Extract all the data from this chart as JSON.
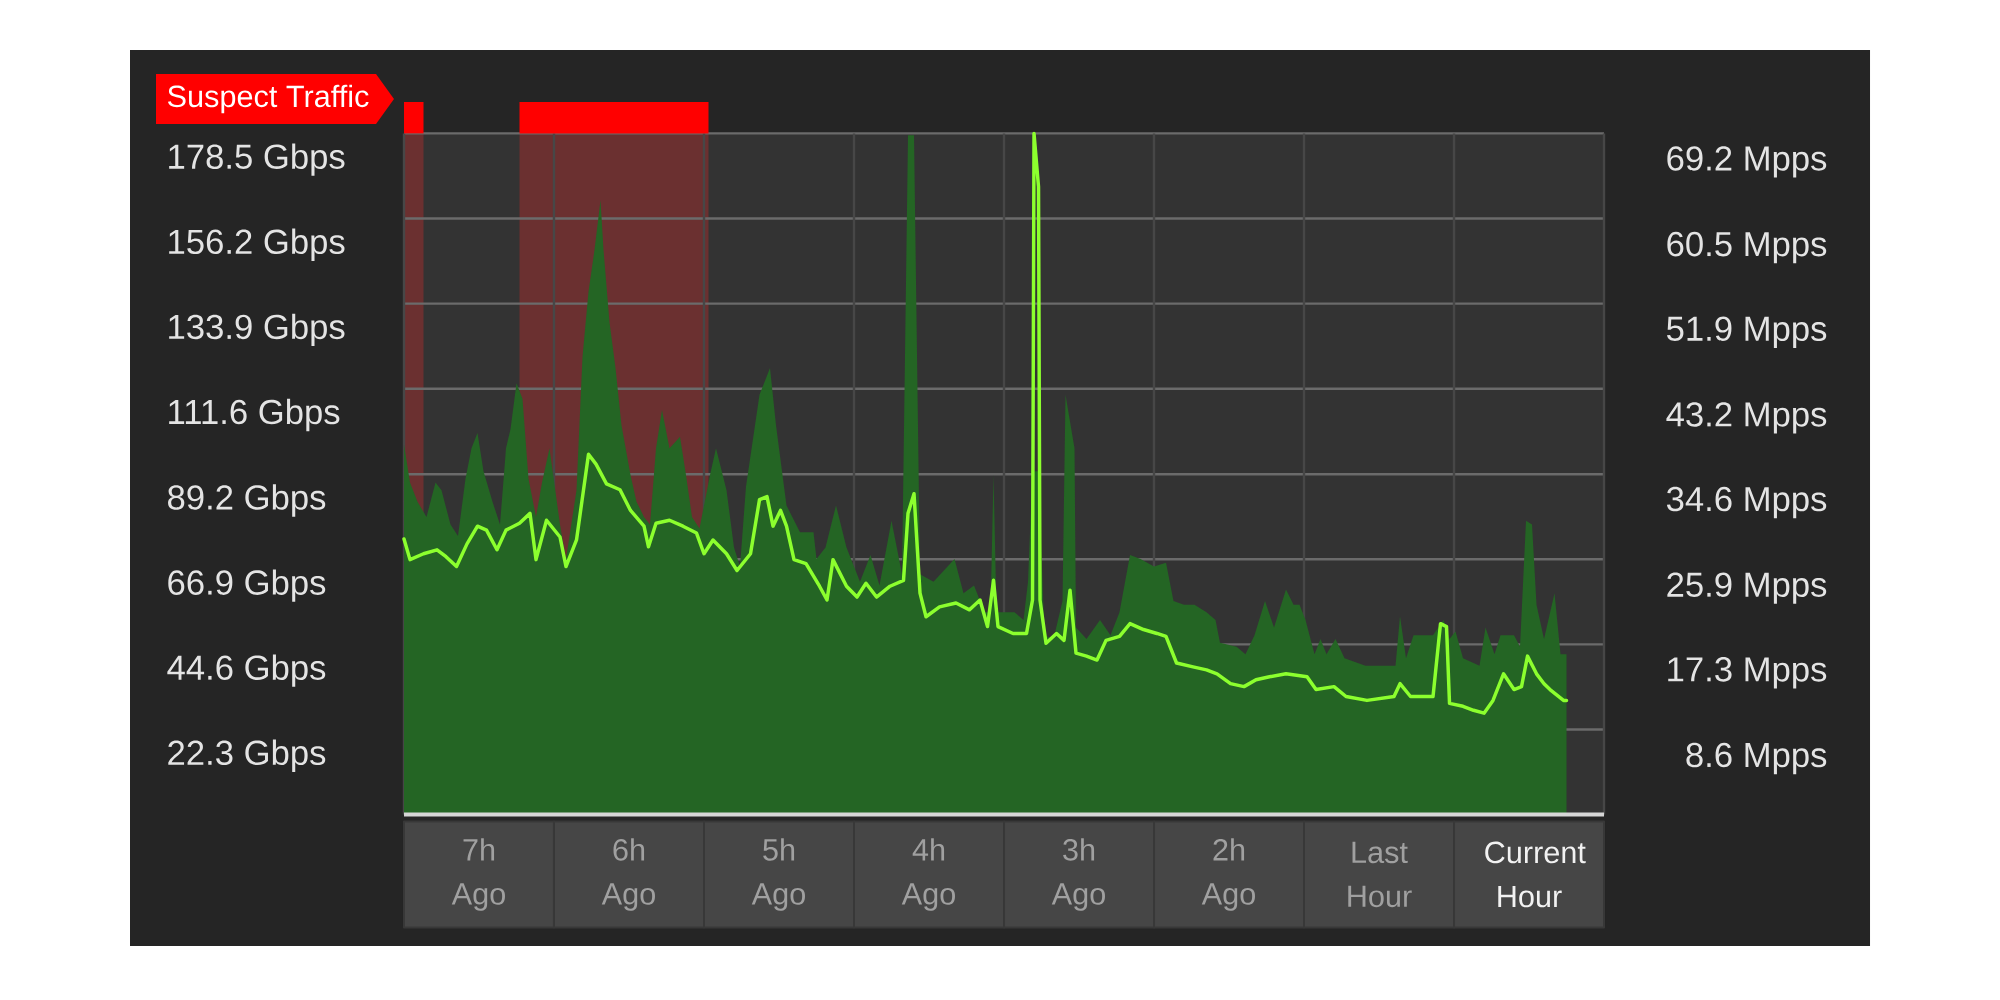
{
  "chart_data": {
    "type": "area",
    "xlim": [
      -7.5,
      0.5
    ],
    "xticks": [
      {
        "value": -7.5,
        "label": null
      },
      {
        "value": -7,
        "label": "7h Ago"
      },
      {
        "value": -6.5,
        "label": null
      },
      {
        "value": -6,
        "label": "6h Ago"
      },
      {
        "value": -5.5,
        "label": null
      },
      {
        "value": -5,
        "label": "5h Ago"
      },
      {
        "value": -4.5,
        "label": null
      },
      {
        "value": -4,
        "label": "4h Ago"
      },
      {
        "value": -3.5,
        "label": null
      },
      {
        "value": -3,
        "label": "3h Ago"
      },
      {
        "value": -2.5,
        "label": null
      },
      {
        "value": -2,
        "label": "2h Ago"
      },
      {
        "value": -1.5,
        "label": null
      },
      {
        "value": -1,
        "label": "Last Hour"
      },
      {
        "value": -0.5,
        "label": null
      },
      {
        "value": 0,
        "label": "Current Hour"
      },
      {
        "value": 0.5,
        "label": null
      }
    ],
    "ylim": [
      0,
      178.5
    ],
    "yticks": [
      {
        "value": 22.3,
        "label": "22.3 Gbps"
      },
      {
        "value": 44.6,
        "label": "44.6 Gbps"
      },
      {
        "value": 66.9,
        "label": "66.9 Gbps"
      },
      {
        "value": 89.2,
        "label": "89.2 Gbps"
      },
      {
        "value": 111.6,
        "label": "111.6 Gbps"
      },
      {
        "value": 133.9,
        "label": "133.9 Gbps"
      },
      {
        "value": 156.2,
        "label": "156.2 Gbps"
      },
      {
        "value": 178.5,
        "label": "178.5 Gbps"
      }
    ],
    "y2lim": [
      0,
      69.2
    ],
    "y2ticks": [
      {
        "value": 8.6,
        "label": "8.6 Mpps"
      },
      {
        "value": 17.3,
        "label": "17.3 Mpps"
      },
      {
        "value": 25.9,
        "label": "25.9 Mpps"
      },
      {
        "value": 34.6,
        "label": "34.6 Mpps"
      },
      {
        "value": 43.2,
        "label": "43.2 Mpps"
      },
      {
        "value": 51.9,
        "label": "51.9 Mpps"
      },
      {
        "value": 60.5,
        "label": "60.5 Mpps"
      },
      {
        "value": 69.2,
        "label": "69.2 Mpps"
      }
    ],
    "grid": true,
    "bands": [
      {
        "axis": "x",
        "from": -7.5,
        "to": -7.37,
        "label": "Suspect Traffic",
        "color": "#6b3030"
      },
      {
        "axis": "x",
        "from": -6.73,
        "to": -5.47,
        "color": "#6b3030"
      }
    ],
    "series": [
      {
        "color": "#246524",
        "x": [
          -7.5,
          -7.46,
          -7.41,
          -7.35,
          -7.29,
          -7.25,
          -7.19,
          -7.14,
          -7.09,
          -7.05,
          -7.01,
          -6.97,
          -6.91,
          -6.86,
          -6.82,
          -6.79,
          -6.75,
          -6.71,
          -6.67,
          -6.62,
          -6.58,
          -6.53,
          -6.46,
          -6.42,
          -6.35,
          -6.31,
          -6.27,
          -6.23,
          -6.19,
          -6.17,
          -6.13,
          -6.09,
          -6.05,
          -5.99,
          -5.95,
          -5.9,
          -5.86,
          -5.82,
          -5.78,
          -5.73,
          -5.66,
          -5.62,
          -5.58,
          -5.53,
          -5.46,
          -5.42,
          -5.35,
          -5.3,
          -5.26,
          -5.22,
          -5.19,
          -5.13,
          -5.06,
          -5.02,
          -4.95,
          -4.86,
          -4.77,
          -4.75,
          -4.69,
          -4.62,
          -4.55,
          -4.46,
          -4.39,
          -4.33,
          -4.25,
          -4.18,
          -4.14,
          -4.1,
          -4.06,
          -3.97,
          -3.83,
          -3.77,
          -3.7,
          -3.63,
          -3.59,
          -3.57,
          -3.55,
          -3.43,
          -3.37,
          -3.34,
          -3.31,
          -3.27,
          -3.23,
          -3.17,
          -3.11,
          -3.09,
          -3.03,
          -3.02,
          -2.95,
          -2.86,
          -2.79,
          -2.73,
          -2.66,
          -2.59,
          -2.5,
          -2.42,
          -2.37,
          -2.3,
          -2.23,
          -2.15,
          -2.09,
          -2.06,
          -1.95,
          -1.89,
          -1.83,
          -1.76,
          -1.7,
          -1.62,
          -1.57,
          -1.53,
          -1.49,
          -1.43,
          -1.39,
          -1.35,
          -1.29,
          -1.23,
          -1.09,
          -0.89,
          -0.86,
          -0.82,
          -0.77,
          -0.64,
          -0.57,
          -0.53,
          -0.49,
          -0.44,
          -0.33,
          -0.29,
          -0.23,
          -0.19,
          -0.1,
          -0.06,
          -0.02,
          0.02,
          0.05,
          0.1,
          0.17,
          0.21,
          0.25
        ],
        "values": [
          97,
          87,
          82,
          78,
          87,
          85,
          76,
          73,
          88,
          96,
          100,
          90,
          82,
          76,
          96,
          101,
          113,
          109,
          88,
          78,
          87,
          96,
          76,
          67,
          85,
          120,
          137,
          148,
          161,
          148,
          129,
          117,
          102,
          89,
          82,
          78,
          76,
          96,
          106,
          96,
          99,
          89,
          78,
          75,
          89,
          96,
          85,
          70,
          65,
          86,
          94,
          110,
          117,
          102,
          81,
          74,
          74,
          67,
          70,
          81,
          70,
          61,
          68,
          60,
          77,
          63,
          178,
          178,
          63,
          61,
          67,
          58,
          60,
          53,
          53,
          89,
          53,
          53,
          51,
          61,
          90,
          90,
          47,
          46,
          56,
          110,
          96,
          49,
          46,
          51,
          47,
          53,
          68,
          67,
          65,
          66,
          56,
          55,
          55,
          53,
          51,
          45,
          44,
          42,
          47,
          56,
          49,
          59,
          55,
          55,
          51,
          42,
          46,
          42,
          46,
          41,
          39,
          39,
          52,
          41,
          47,
          47,
          51,
          46,
          48,
          41,
          39,
          49,
          42,
          47,
          47,
          44,
          77,
          76,
          55,
          46,
          58,
          42,
          42
        ]
      },
      {
        "type": "line",
        "axis": "y2",
        "color": "#8cff2e",
        "x": [
          -7.5,
          -7.46,
          -7.37,
          -7.28,
          -7.22,
          -7.15,
          -7.08,
          -7.01,
          -6.95,
          -6.88,
          -6.82,
          -6.73,
          -6.66,
          -6.62,
          -6.55,
          -6.46,
          -6.42,
          -6.35,
          -6.27,
          -6.22,
          -6.15,
          -6.06,
          -5.99,
          -5.9,
          -5.87,
          -5.82,
          -5.73,
          -5.64,
          -5.55,
          -5.5,
          -5.44,
          -5.35,
          -5.28,
          -5.19,
          -5.13,
          -5.08,
          -5.04,
          -4.99,
          -4.95,
          -4.9,
          -4.82,
          -4.73,
          -4.68,
          -4.64,
          -4.55,
          -4.48,
          -4.42,
          -4.35,
          -4.26,
          -4.17,
          -4.14,
          -4.1,
          -4.06,
          -4.02,
          -3.93,
          -3.82,
          -3.73,
          -3.66,
          -3.61,
          -3.57,
          -3.54,
          -3.44,
          -3.35,
          -3.31,
          -3.3,
          -3.27,
          -3.26,
          -3.22,
          -3.15,
          -3.1,
          -3.06,
          -3.02,
          -2.95,
          -2.88,
          -2.82,
          -2.73,
          -2.66,
          -2.57,
          -2.48,
          -2.42,
          -2.35,
          -2.24,
          -2.15,
          -2.08,
          -1.99,
          -1.9,
          -1.82,
          -1.73,
          -1.62,
          -1.48,
          -1.42,
          -1.3,
          -1.22,
          -1.08,
          -0.9,
          -0.86,
          -0.79,
          -0.64,
          -0.59,
          -0.55,
          -0.53,
          -0.44,
          -0.37,
          -0.3,
          -0.24,
          -0.17,
          -0.1,
          -0.05,
          -0.01,
          0.05,
          0.1,
          0.14,
          0.23,
          0.25
        ],
        "values": [
          28.0,
          25.9,
          26.5,
          26.9,
          26.2,
          25.2,
          27.5,
          29.3,
          28.9,
          26.9,
          28.9,
          29.6,
          30.6,
          25.9,
          29.9,
          28.2,
          25.2,
          27.9,
          36.6,
          35.6,
          33.6,
          33.0,
          30.9,
          29.3,
          27.2,
          29.6,
          29.9,
          29.3,
          28.6,
          26.5,
          27.9,
          26.5,
          24.8,
          26.5,
          32.0,
          32.3,
          29.3,
          30.9,
          29.3,
          25.9,
          25.5,
          23.2,
          21.8,
          25.9,
          23.2,
          22.1,
          23.5,
          22.1,
          23.2,
          23.8,
          30.6,
          32.6,
          22.5,
          20.1,
          21.1,
          21.5,
          20.8,
          21.8,
          19.1,
          23.8,
          19.1,
          18.4,
          18.4,
          21.8,
          69.2,
          63.8,
          21.8,
          17.4,
          18.4,
          17.7,
          22.8,
          16.4,
          16.1,
          15.7,
          17.7,
          18.1,
          19.4,
          18.8,
          18.4,
          18.1,
          15.4,
          15.0,
          14.7,
          14.3,
          13.3,
          13.0,
          13.7,
          14.0,
          14.3,
          14.0,
          12.7,
          13.0,
          12.0,
          11.6,
          12.0,
          13.3,
          12.0,
          12.0,
          19.4,
          19.1,
          11.3,
          11.0,
          10.6,
          10.3,
          11.6,
          14.3,
          12.7,
          13.0,
          16.1,
          14.3,
          13.3,
          12.7,
          11.6,
          11.6
        ]
      }
    ]
  }
}
